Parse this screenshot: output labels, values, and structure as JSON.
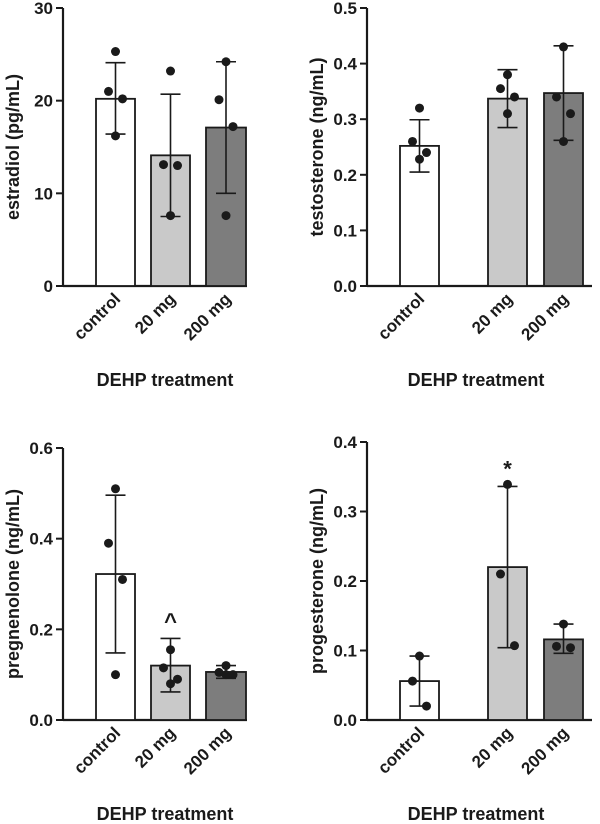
{
  "figure": {
    "bar_fill_colors": [
      "#ffffff",
      "#c9c9c9",
      "#7d7d7d"
    ],
    "bar_stroke_color": "#1a1a1a",
    "point_color": "#1a1a1a"
  },
  "chart_data": [
    {
      "type": "bar",
      "title": "",
      "ylabel": "estradiol (pg/mL)",
      "xlabel": "DEHP treatment",
      "categories": [
        "control",
        "20 mg",
        "200 mg"
      ],
      "values": [
        20.2,
        14.1,
        17.1
      ],
      "error_low": [
        16.4,
        7.5,
        10.0
      ],
      "error_high": [
        24.1,
        20.7,
        24.2
      ],
      "points": [
        [
          25.3,
          21.0,
          20.2,
          16.2
        ],
        [
          23.2,
          13.1,
          13.0,
          7.6
        ],
        [
          24.2,
          20.1,
          17.2,
          7.6
        ]
      ],
      "ylim": [
        0,
        30
      ],
      "yticks": [
        "0",
        "10",
        "20",
        "30"
      ],
      "annotations": [
        "",
        "",
        ""
      ]
    },
    {
      "type": "bar",
      "title": "",
      "ylabel": "testosterone (ng/mL)",
      "xlabel": "DEHP treatment",
      "categories": [
        "control",
        "20 mg",
        "200 mg"
      ],
      "values": [
        0.252,
        0.337,
        0.347
      ],
      "error_low": [
        0.205,
        0.285,
        0.262
      ],
      "error_high": [
        0.299,
        0.389,
        0.432
      ],
      "points": [
        [
          0.32,
          0.26,
          0.24,
          0.228
        ],
        [
          0.38,
          0.355,
          0.34,
          0.31
        ],
        [
          0.43,
          0.34,
          0.31,
          0.26
        ]
      ],
      "ylim": [
        0,
        0.5
      ],
      "yticks": [
        "0.0",
        "0.1",
        "0.2",
        "0.3",
        "0.4",
        "0.5"
      ],
      "annotations": [
        "",
        "",
        ""
      ]
    },
    {
      "type": "bar",
      "title": "",
      "ylabel": "pregnenolone (ng/mL)",
      "xlabel": "DEHP treatment",
      "categories": [
        "control",
        "20 mg",
        "200 mg"
      ],
      "values": [
        0.322,
        0.12,
        0.106
      ],
      "error_low": [
        0.148,
        0.062,
        0.092
      ],
      "error_high": [
        0.496,
        0.18,
        0.12
      ],
      "points": [
        [
          0.51,
          0.39,
          0.31,
          0.1
        ],
        [
          0.155,
          0.115,
          0.09,
          0.08
        ],
        [
          0.12,
          0.105,
          0.1,
          0.1
        ]
      ],
      "ylim": [
        0,
        0.6
      ],
      "yticks": [
        "0.0",
        "0.2",
        "0.4",
        "0.6"
      ],
      "annotations": [
        "",
        "^",
        ""
      ]
    },
    {
      "type": "bar",
      "title": "",
      "ylabel": "progesterone (ng/mL)",
      "xlabel": "DEHP treatment",
      "categories": [
        "control",
        "20 mg",
        "200 mg"
      ],
      "values": [
        0.056,
        0.22,
        0.116
      ],
      "error_low": [
        0.02,
        0.104,
        0.096
      ],
      "error_high": [
        0.092,
        0.336,
        0.138
      ],
      "points": [
        [
          0.092,
          0.056,
          0.02
        ],
        [
          0.339,
          0.21,
          0.107
        ],
        [
          0.138,
          0.106,
          0.104
        ]
      ],
      "ylim": [
        0,
        0.4
      ],
      "yticks": [
        "0.0",
        "0.1",
        "0.2",
        "0.3",
        "0.4"
      ],
      "annotations": [
        "",
        "*",
        ""
      ]
    }
  ]
}
